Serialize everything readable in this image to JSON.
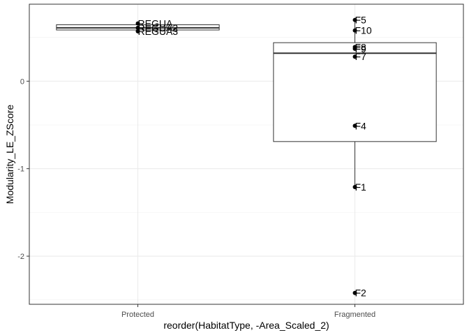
{
  "chart_data": {
    "type": "boxplot",
    "xlabel": "reorder(HabitatType, -Area_Scaled_2)",
    "ylabel": "Modularity_LE_ZScore",
    "categories": [
      "Protected",
      "Fragmented"
    ],
    "yticks": [
      -2,
      -1,
      0
    ],
    "ylim": [
      -2.55,
      0.88
    ],
    "grid": true,
    "boxes": [
      {
        "category": "Protected",
        "min": 0.57,
        "q1": 0.585,
        "median": 0.61,
        "q3": 0.645,
        "max": 0.66
      },
      {
        "category": "Fragmented",
        "min": -1.22,
        "q1": -0.69,
        "median": 0.32,
        "q3": 0.44,
        "max": 0.7
      }
    ],
    "points": [
      {
        "category": "Protected",
        "label": "REGUA",
        "value": 0.66
      },
      {
        "category": "Protected",
        "label": "REGUA2",
        "value": 0.61
      },
      {
        "category": "Protected",
        "label": "REGUA3",
        "value": 0.57
      },
      {
        "category": "Fragmented",
        "label": "F5",
        "value": 0.7
      },
      {
        "category": "Fragmented",
        "label": "F10",
        "value": 0.58
      },
      {
        "category": "Fragmented",
        "label": "F8",
        "value": 0.39
      },
      {
        "category": "Fragmented",
        "label": "F9",
        "value": 0.37
      },
      {
        "category": "Fragmented",
        "label": "F7",
        "value": 0.28
      },
      {
        "category": "Fragmented",
        "label": "F4",
        "value": -0.51
      },
      {
        "category": "Fragmented",
        "label": "F1",
        "value": -1.21
      },
      {
        "category": "Fragmented",
        "label": "F2",
        "value": -2.42
      }
    ]
  }
}
